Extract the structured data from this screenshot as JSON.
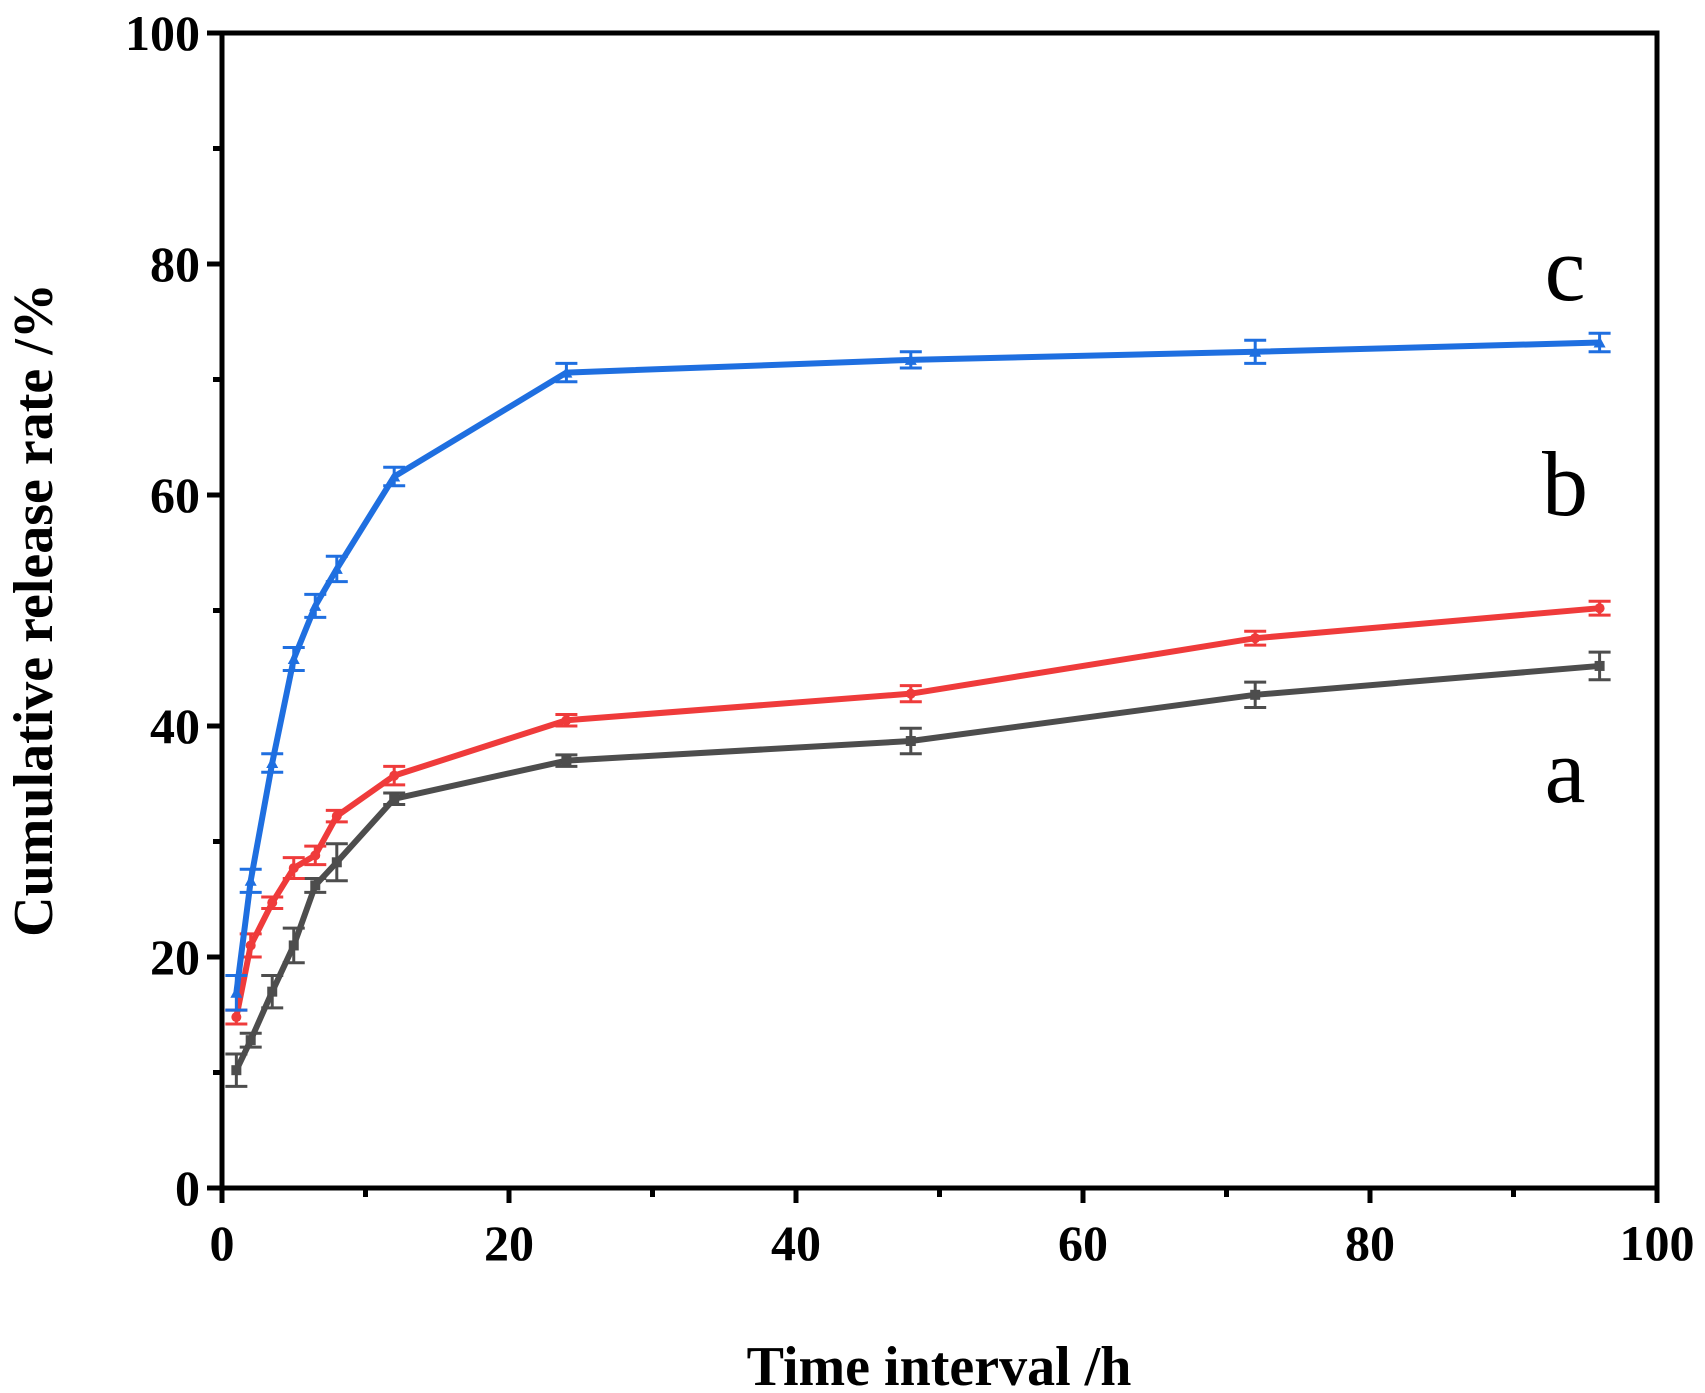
{
  "chart_data": {
    "type": "line",
    "xlabel": "Time interval /h",
    "ylabel": "Cumulative release rate /%",
    "xlim": [
      0,
      100
    ],
    "ylim": [
      0,
      100
    ],
    "xticks": [
      0,
      20,
      40,
      60,
      80,
      100
    ],
    "yticks": [
      0,
      20,
      40,
      60,
      80,
      100
    ],
    "xtick_labels": [
      "0",
      "20",
      "40",
      "60",
      "80",
      "100"
    ],
    "ytick_labels": [
      "0",
      "20",
      "40",
      "60",
      "80",
      "100"
    ],
    "grid": false,
    "x": [
      1,
      2,
      3.5,
      5,
      6.5,
      8,
      12,
      24,
      48,
      72,
      96
    ],
    "series": [
      {
        "name": "a",
        "label": "a",
        "color": "#4d4d4d",
        "marker": "square",
        "values": [
          10.2,
          12.8,
          17.0,
          21.0,
          26.2,
          28.2,
          33.7,
          37.0,
          38.7,
          42.7,
          45.2
        ],
        "errors": [
          1.4,
          0.6,
          1.4,
          1.5,
          0.6,
          1.6,
          0.5,
          0.5,
          1.1,
          1.1,
          1.2
        ]
      },
      {
        "name": "b",
        "label": "b",
        "color": "#ef3b3b",
        "marker": "circle",
        "values": [
          14.8,
          21.0,
          24.7,
          27.7,
          28.8,
          32.2,
          35.7,
          40.5,
          42.8,
          47.6,
          50.2
        ],
        "errors": [
          0.6,
          1.0,
          0.5,
          0.9,
          0.8,
          0.5,
          0.8,
          0.5,
          0.7,
          0.6,
          0.6
        ]
      },
      {
        "name": "c",
        "label": "c",
        "color": "#1f6fe0",
        "marker": "triangle",
        "values": [
          16.9,
          26.6,
          36.8,
          45.8,
          50.4,
          53.6,
          61.6,
          70.6,
          71.7,
          72.4,
          73.2
        ],
        "errors": [
          1.5,
          1.0,
          0.8,
          1.0,
          1.0,
          1.1,
          0.8,
          0.8,
          0.7,
          1.0,
          0.8
        ]
      }
    ]
  }
}
